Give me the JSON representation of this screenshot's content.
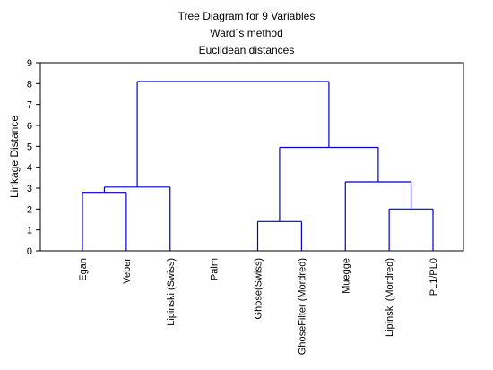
{
  "chart_data": {
    "type": "dendrogram",
    "title": "Tree Diagram for 9 Variables",
    "subtitle": "Ward`s method",
    "subtitle2": "Euclidean distances",
    "ylabel": "Linkage Distance",
    "ylim": [
      0,
      9
    ],
    "yticks": [
      0,
      1,
      2,
      3,
      4,
      5,
      6,
      7,
      8,
      9
    ],
    "grid": false,
    "line_color": "#0000CC",
    "leaves": [
      "Egan",
      "Veber",
      "Lipinski (Swiss)",
      "Palm",
      "Ghose(Swiss)",
      "GhoseFilter (Mordred)",
      "Muegge",
      "Lipinski (Mordred)",
      "PL1/PL0"
    ],
    "merges": [
      {
        "left": 4,
        "right": 5,
        "height": 1.4
      },
      {
        "left": 7,
        "right": 8,
        "height": 2.0
      },
      {
        "left": 0,
        "right": 1,
        "height": 2.8
      },
      {
        "left": "m2",
        "right": 2,
        "height": 3.05
      },
      {
        "left": 6,
        "right": "m1",
        "height": 3.3
      },
      {
        "left": "m0",
        "right": "m4",
        "height": 4.95
      },
      {
        "left": "m3",
        "right": "m5",
        "height": 8.1
      }
    ]
  }
}
